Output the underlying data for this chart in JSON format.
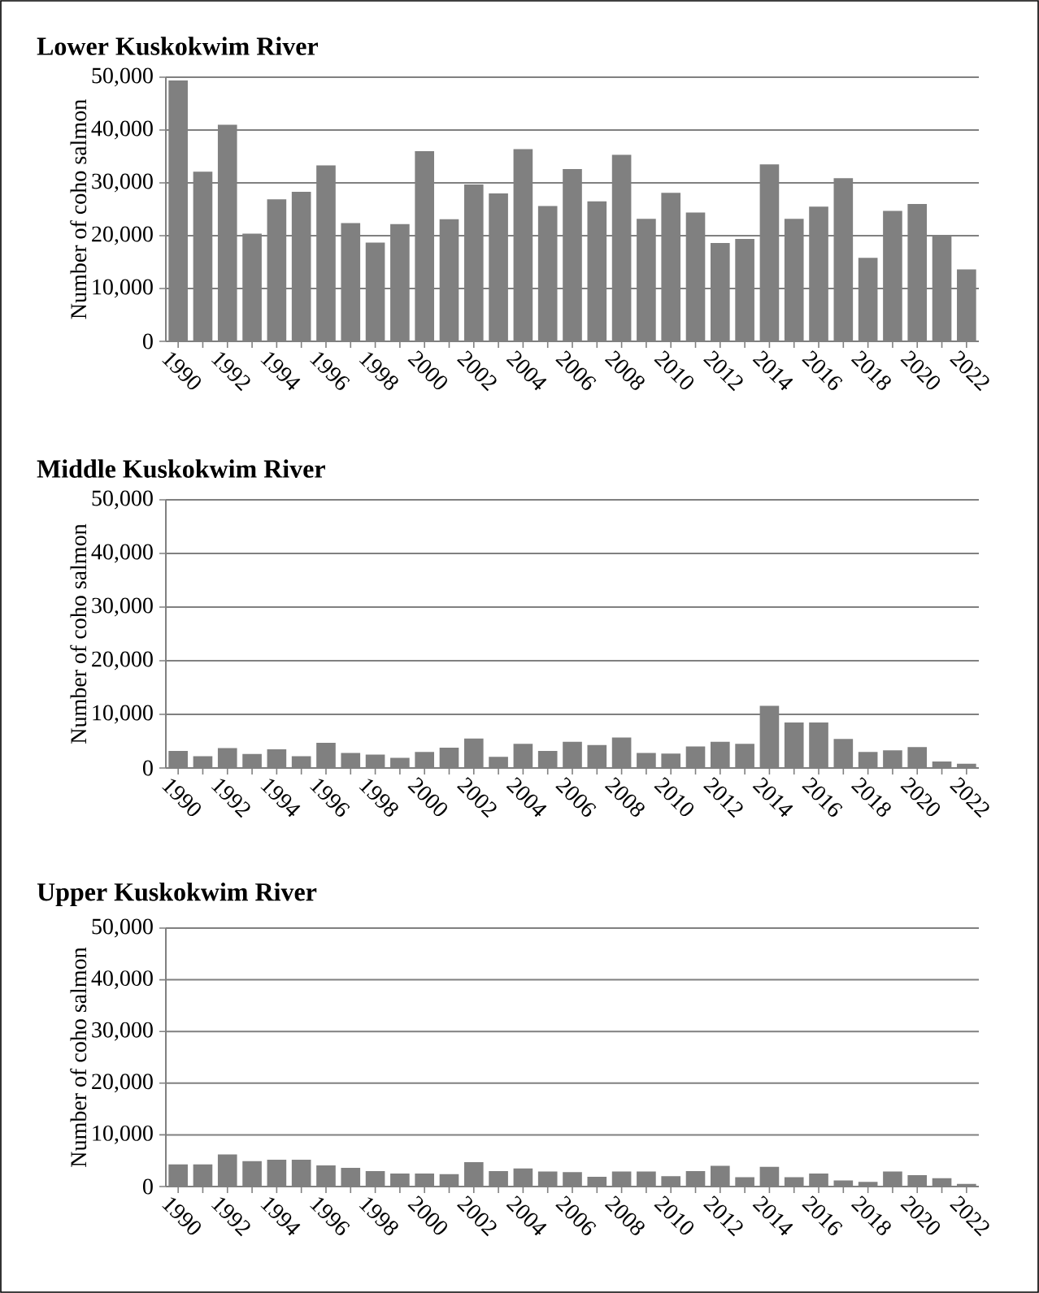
{
  "chart_data": [
    {
      "type": "bar",
      "title": "Lower Kuskokwim River",
      "ylabel": "Number of coho salmon",
      "color": "#808080",
      "grid": "y",
      "categories": [
        "1990",
        null,
        "1992",
        null,
        "1994",
        null,
        "1996",
        null,
        "1998",
        null,
        "2000",
        null,
        "2002",
        null,
        "2004",
        null,
        "2006",
        null,
        "2008",
        null,
        "2010",
        null,
        "2012",
        null,
        "2014",
        null,
        "2016",
        null,
        "2018",
        null,
        "2020",
        null,
        "2022"
      ],
      "values": [
        49400,
        32100,
        41000,
        20400,
        26900,
        28300,
        33300,
        22400,
        18700,
        22200,
        36000,
        23100,
        29700,
        28000,
        36400,
        25600,
        32600,
        26500,
        35300,
        23200,
        28100,
        24400,
        18600,
        19400,
        33500,
        23200,
        25500,
        30900,
        15800,
        24700,
        26000,
        20000,
        13600
      ],
      "ylim": [
        0,
        50000
      ],
      "yticks": [
        {
          "value": 0,
          "label": "0"
        },
        {
          "value": 10000,
          "label": "10,000"
        },
        {
          "value": 20000,
          "label": "20,000"
        },
        {
          "value": 30000,
          "label": "30,000"
        },
        {
          "value": 40000,
          "label": "40,000"
        },
        {
          "value": 50000,
          "label": "50,000"
        }
      ]
    },
    {
      "type": "bar",
      "title": "Middle Kuskokwim River",
      "ylabel": "Number of coho salmon",
      "color": "#808080",
      "grid": "y",
      "categories": [
        "1990",
        null,
        "1992",
        null,
        "1994",
        null,
        "1996",
        null,
        "1998",
        null,
        "2000",
        null,
        "2002",
        null,
        "2004",
        null,
        "2006",
        null,
        "2008",
        null,
        "2010",
        null,
        "2012",
        null,
        "2014",
        null,
        "2016",
        null,
        "2018",
        null,
        "2020",
        null,
        "2022"
      ],
      "values": [
        3200,
        2200,
        3700,
        2600,
        3500,
        2200,
        4700,
        2800,
        2500,
        1900,
        3000,
        3800,
        5500,
        2100,
        4500,
        3200,
        4900,
        4300,
        5700,
        2800,
        2700,
        4000,
        4900,
        4500,
        11600,
        8500,
        8500,
        5400,
        3000,
        3300,
        3900,
        1200,
        800
      ],
      "ylim": [
        0,
        50000
      ],
      "yticks": [
        {
          "value": 0,
          "label": "0"
        },
        {
          "value": 10000,
          "label": "10,000"
        },
        {
          "value": 20000,
          "label": "20,000"
        },
        {
          "value": 30000,
          "label": "30,000"
        },
        {
          "value": 40000,
          "label": "40,000"
        },
        {
          "value": 50000,
          "label": "50,000"
        }
      ]
    },
    {
      "type": "bar",
      "title": "Upper Kuskokwim River",
      "ylabel": "Number of coho salmon",
      "color": "#808080",
      "grid": "y",
      "categories": [
        "1990",
        null,
        "1992",
        null,
        "1994",
        null,
        "1996",
        null,
        "1998",
        null,
        "2000",
        null,
        "2002",
        null,
        "2004",
        null,
        "2006",
        null,
        "2008",
        null,
        "2010",
        null,
        "2012",
        null,
        "2014",
        null,
        "2016",
        null,
        "2018",
        null,
        "2020",
        null,
        "2022"
      ],
      "values": [
        4300,
        4300,
        6200,
        4900,
        5200,
        5200,
        4100,
        3600,
        3000,
        2500,
        2500,
        2400,
        4700,
        3000,
        3500,
        2900,
        2800,
        1900,
        2900,
        2900,
        2000,
        3000,
        4000,
        1800,
        3800,
        1800,
        2500,
        1200,
        900,
        2900,
        2200,
        1600,
        500
      ],
      "ylim": [
        0,
        50000
      ],
      "yticks": [
        {
          "value": 0,
          "label": "0"
        },
        {
          "value": 10000,
          "label": "10,000"
        },
        {
          "value": 20000,
          "label": "20,000"
        },
        {
          "value": 30000,
          "label": "30,000"
        },
        {
          "value": 40000,
          "label": "40,000"
        },
        {
          "value": 50000,
          "label": "50,000"
        }
      ]
    }
  ]
}
